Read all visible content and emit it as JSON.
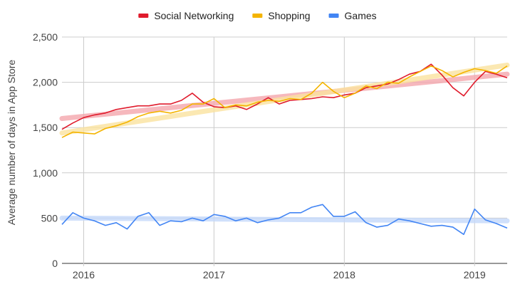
{
  "chart_data": {
    "type": "line",
    "title": "",
    "xlabel": "",
    "ylabel": "Average number of days in App Store",
    "ylim": [
      0,
      2500
    ],
    "xlim": [
      "2015-11",
      "2019-04"
    ],
    "yticks": [
      0,
      500,
      1000,
      1500,
      2000,
      2500
    ],
    "ytick_labels": [
      "0",
      "500",
      "1,000",
      "1,500",
      "2,000",
      "2,500"
    ],
    "xticks": [
      "2016-01",
      "2017-01",
      "2018-01",
      "2019-01"
    ],
    "xtick_labels": [
      "2016",
      "2017",
      "2018",
      "2019"
    ],
    "grid": true,
    "legend_position": "top-center",
    "series": [
      {
        "name": "Social Networking",
        "color": "#e01b2c",
        "trend": {
          "start": 1600,
          "end": 2090,
          "color": "#f4a7ad"
        },
        "points": [
          [
            "2015-11",
            1480
          ],
          [
            "2015-12",
            1550
          ],
          [
            "2016-01",
            1610
          ],
          [
            "2016-02",
            1640
          ],
          [
            "2016-03",
            1660
          ],
          [
            "2016-04",
            1700
          ],
          [
            "2016-05",
            1720
          ],
          [
            "2016-06",
            1740
          ],
          [
            "2016-07",
            1740
          ],
          [
            "2016-08",
            1760
          ],
          [
            "2016-09",
            1760
          ],
          [
            "2016-10",
            1800
          ],
          [
            "2016-11",
            1880
          ],
          [
            "2016-12",
            1780
          ],
          [
            "2017-01",
            1730
          ],
          [
            "2017-02",
            1720
          ],
          [
            "2017-03",
            1740
          ],
          [
            "2017-04",
            1700
          ],
          [
            "2017-05",
            1760
          ],
          [
            "2017-06",
            1830
          ],
          [
            "2017-07",
            1760
          ],
          [
            "2017-08",
            1800
          ],
          [
            "2017-09",
            1810
          ],
          [
            "2017-10",
            1820
          ],
          [
            "2017-11",
            1840
          ],
          [
            "2017-12",
            1830
          ],
          [
            "2018-01",
            1860
          ],
          [
            "2018-02",
            1880
          ],
          [
            "2018-03",
            1940
          ],
          [
            "2018-04",
            1960
          ],
          [
            "2018-05",
            1980
          ],
          [
            "2018-06",
            2030
          ],
          [
            "2018-07",
            2090
          ],
          [
            "2018-08",
            2120
          ],
          [
            "2018-09",
            2200
          ],
          [
            "2018-10",
            2080
          ],
          [
            "2018-11",
            1940
          ],
          [
            "2018-12",
            1850
          ],
          [
            "2019-01",
            2000
          ],
          [
            "2019-02",
            2120
          ],
          [
            "2019-03",
            2090
          ],
          [
            "2019-04",
            2050
          ]
        ]
      },
      {
        "name": "Shopping",
        "color": "#f4b400",
        "trend": {
          "start": 1440,
          "end": 2190,
          "color": "#fbe3a0"
        },
        "points": [
          [
            "2015-11",
            1390
          ],
          [
            "2015-12",
            1450
          ],
          [
            "2016-01",
            1440
          ],
          [
            "2016-02",
            1430
          ],
          [
            "2016-03",
            1490
          ],
          [
            "2016-04",
            1520
          ],
          [
            "2016-05",
            1560
          ],
          [
            "2016-06",
            1620
          ],
          [
            "2016-07",
            1660
          ],
          [
            "2016-08",
            1680
          ],
          [
            "2016-09",
            1660
          ],
          [
            "2016-10",
            1690
          ],
          [
            "2016-11",
            1760
          ],
          [
            "2016-12",
            1760
          ],
          [
            "2017-01",
            1820
          ],
          [
            "2017-02",
            1720
          ],
          [
            "2017-03",
            1750
          ],
          [
            "2017-04",
            1740
          ],
          [
            "2017-05",
            1780
          ],
          [
            "2017-06",
            1800
          ],
          [
            "2017-07",
            1790
          ],
          [
            "2017-08",
            1820
          ],
          [
            "2017-09",
            1810
          ],
          [
            "2017-10",
            1880
          ],
          [
            "2017-11",
            2000
          ],
          [
            "2017-12",
            1900
          ],
          [
            "2018-01",
            1830
          ],
          [
            "2018-02",
            1880
          ],
          [
            "2018-03",
            1960
          ],
          [
            "2018-04",
            1930
          ],
          [
            "2018-05",
            2000
          ],
          [
            "2018-06",
            1990
          ],
          [
            "2018-07",
            2060
          ],
          [
            "2018-08",
            2120
          ],
          [
            "2018-09",
            2180
          ],
          [
            "2018-10",
            2130
          ],
          [
            "2018-11",
            2060
          ],
          [
            "2018-12",
            2110
          ],
          [
            "2019-01",
            2150
          ],
          [
            "2019-02",
            2130
          ],
          [
            "2019-03",
            2100
          ],
          [
            "2019-04",
            2180
          ]
        ]
      },
      {
        "name": "Games",
        "color": "#4285f4",
        "trend": {
          "start": 500,
          "end": 470,
          "color": "#c5d9fb"
        },
        "points": [
          [
            "2015-11",
            430
          ],
          [
            "2015-12",
            560
          ],
          [
            "2016-01",
            500
          ],
          [
            "2016-02",
            470
          ],
          [
            "2016-03",
            420
          ],
          [
            "2016-04",
            450
          ],
          [
            "2016-05",
            380
          ],
          [
            "2016-06",
            520
          ],
          [
            "2016-07",
            560
          ],
          [
            "2016-08",
            420
          ],
          [
            "2016-09",
            470
          ],
          [
            "2016-10",
            460
          ],
          [
            "2016-11",
            500
          ],
          [
            "2016-12",
            470
          ],
          [
            "2017-01",
            540
          ],
          [
            "2017-02",
            520
          ],
          [
            "2017-03",
            470
          ],
          [
            "2017-04",
            500
          ],
          [
            "2017-05",
            450
          ],
          [
            "2017-06",
            480
          ],
          [
            "2017-07",
            500
          ],
          [
            "2017-08",
            560
          ],
          [
            "2017-09",
            560
          ],
          [
            "2017-10",
            620
          ],
          [
            "2017-11",
            650
          ],
          [
            "2017-12",
            520
          ],
          [
            "2018-01",
            520
          ],
          [
            "2018-02",
            570
          ],
          [
            "2018-03",
            450
          ],
          [
            "2018-04",
            400
          ],
          [
            "2018-05",
            420
          ],
          [
            "2018-06",
            490
          ],
          [
            "2018-07",
            470
          ],
          [
            "2018-08",
            440
          ],
          [
            "2018-09",
            410
          ],
          [
            "2018-10",
            420
          ],
          [
            "2018-11",
            400
          ],
          [
            "2018-12",
            320
          ],
          [
            "2019-01",
            600
          ],
          [
            "2019-02",
            480
          ],
          [
            "2019-03",
            440
          ],
          [
            "2019-04",
            390
          ]
        ]
      }
    ]
  }
}
